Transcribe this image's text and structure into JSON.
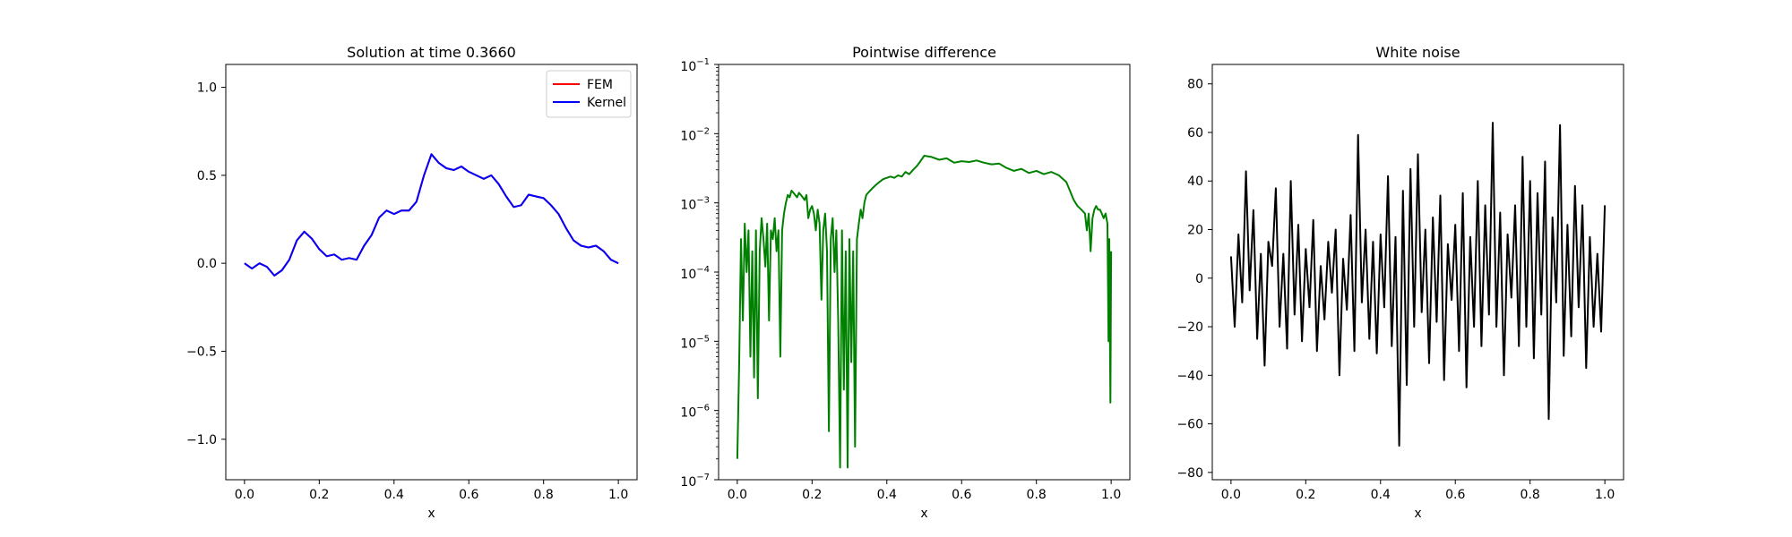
{
  "chart_data": [
    {
      "type": "line",
      "title": "Solution at time 0.3660",
      "xlabel": "x",
      "ylabel": "",
      "xlim": [
        -0.05,
        1.05
      ],
      "ylim": [
        -1.23,
        1.13
      ],
      "xticks": [
        0.0,
        0.2,
        0.4,
        0.6,
        0.8,
        1.0
      ],
      "xtick_labels": [
        "0.0",
        "0.2",
        "0.4",
        "0.6",
        "0.8",
        "1.0"
      ],
      "yticks": [
        -1.0,
        -0.5,
        0.0,
        0.5,
        1.0
      ],
      "ytick_labels": [
        "−1.0",
        "−0.5",
        "0.0",
        "0.5",
        "1.0"
      ],
      "legend": {
        "position": "top-right",
        "entries": [
          "FEM",
          "Kernel"
        ]
      },
      "series": [
        {
          "name": "FEM",
          "color": "#ff0000",
          "x": [
            0,
            0.02,
            0.04,
            0.06,
            0.08,
            0.1,
            0.12,
            0.14,
            0.16,
            0.18,
            0.2,
            0.22,
            0.24,
            0.26,
            0.28,
            0.3,
            0.32,
            0.34,
            0.36,
            0.38,
            0.4,
            0.42,
            0.44,
            0.46,
            0.48,
            0.5,
            0.52,
            0.54,
            0.56,
            0.58,
            0.6,
            0.62,
            0.64,
            0.66,
            0.68,
            0.7,
            0.72,
            0.74,
            0.76,
            0.78,
            0.8,
            0.82,
            0.84,
            0.86,
            0.88,
            0.9,
            0.92,
            0.94,
            0.96,
            0.98,
            1.0
          ],
          "y": [
            0.0,
            -0.03,
            0.0,
            -0.02,
            -0.07,
            -0.04,
            0.02,
            0.13,
            0.18,
            0.14,
            0.08,
            0.04,
            0.05,
            0.02,
            0.03,
            0.02,
            0.1,
            0.16,
            0.26,
            0.3,
            0.28,
            0.3,
            0.3,
            0.35,
            0.5,
            0.62,
            0.57,
            0.54,
            0.53,
            0.55,
            0.52,
            0.5,
            0.48,
            0.5,
            0.45,
            0.38,
            0.32,
            0.33,
            0.39,
            0.38,
            0.37,
            0.33,
            0.28,
            0.2,
            0.13,
            0.1,
            0.09,
            0.1,
            0.07,
            0.02,
            0.0
          ]
        },
        {
          "name": "Kernel",
          "color": "#0000ff",
          "x": [
            0,
            0.02,
            0.04,
            0.06,
            0.08,
            0.1,
            0.12,
            0.14,
            0.16,
            0.18,
            0.2,
            0.22,
            0.24,
            0.26,
            0.28,
            0.3,
            0.32,
            0.34,
            0.36,
            0.38,
            0.4,
            0.42,
            0.44,
            0.46,
            0.48,
            0.5,
            0.52,
            0.54,
            0.56,
            0.58,
            0.6,
            0.62,
            0.64,
            0.66,
            0.68,
            0.7,
            0.72,
            0.74,
            0.76,
            0.78,
            0.8,
            0.82,
            0.84,
            0.86,
            0.88,
            0.9,
            0.92,
            0.94,
            0.96,
            0.98,
            1.0
          ],
          "y": [
            0.0,
            -0.03,
            0.0,
            -0.02,
            -0.07,
            -0.04,
            0.02,
            0.13,
            0.18,
            0.14,
            0.08,
            0.04,
            0.05,
            0.02,
            0.03,
            0.02,
            0.1,
            0.16,
            0.26,
            0.3,
            0.28,
            0.3,
            0.3,
            0.35,
            0.5,
            0.62,
            0.57,
            0.54,
            0.53,
            0.55,
            0.52,
            0.5,
            0.48,
            0.5,
            0.45,
            0.38,
            0.32,
            0.33,
            0.39,
            0.38,
            0.37,
            0.33,
            0.28,
            0.2,
            0.13,
            0.1,
            0.09,
            0.1,
            0.07,
            0.02,
            0.0
          ]
        }
      ]
    },
    {
      "type": "line",
      "title": "Pointwise difference",
      "xlabel": "x",
      "ylabel": "",
      "yscale": "log",
      "xlim": [
        -0.05,
        1.05
      ],
      "ylim": [
        1e-07,
        0.1
      ],
      "xticks": [
        0.0,
        0.2,
        0.4,
        0.6,
        0.8,
        1.0
      ],
      "xtick_labels": [
        "0.0",
        "0.2",
        "0.4",
        "0.6",
        "0.8",
        "1.0"
      ],
      "yticks": [
        1e-07,
        1e-06,
        1e-05,
        0.0001,
        0.001,
        0.01,
        0.1
      ],
      "ytick_labels": [
        {
          "base": "10",
          "exp": "−7"
        },
        {
          "base": "10",
          "exp": "−6"
        },
        {
          "base": "10",
          "exp": "−5"
        },
        {
          "base": "10",
          "exp": "−4"
        },
        {
          "base": "10",
          "exp": "−3"
        },
        {
          "base": "10",
          "exp": "−2"
        },
        {
          "base": "10",
          "exp": "−1"
        }
      ],
      "series": [
        {
          "color": "#008000",
          "x": [
            0,
            0.005,
            0.01,
            0.015,
            0.02,
            0.025,
            0.03,
            0.035,
            0.04,
            0.045,
            0.05,
            0.055,
            0.06,
            0.065,
            0.07,
            0.075,
            0.08,
            0.085,
            0.09,
            0.095,
            0.1,
            0.105,
            0.11,
            0.115,
            0.12,
            0.125,
            0.13,
            0.135,
            0.14,
            0.145,
            0.15,
            0.155,
            0.16,
            0.165,
            0.17,
            0.175,
            0.18,
            0.185,
            0.19,
            0.195,
            0.2,
            0.205,
            0.21,
            0.215,
            0.22,
            0.225,
            0.23,
            0.235,
            0.24,
            0.245,
            0.25,
            0.255,
            0.26,
            0.265,
            0.27,
            0.275,
            0.28,
            0.285,
            0.29,
            0.295,
            0.3,
            0.305,
            0.31,
            0.315,
            0.32,
            0.325,
            0.33,
            0.335,
            0.34,
            0.345,
            0.35,
            0.36,
            0.37,
            0.38,
            0.39,
            0.4,
            0.41,
            0.42,
            0.43,
            0.44,
            0.45,
            0.46,
            0.47,
            0.48,
            0.49,
            0.5,
            0.52,
            0.54,
            0.56,
            0.58,
            0.6,
            0.62,
            0.64,
            0.66,
            0.68,
            0.7,
            0.72,
            0.74,
            0.76,
            0.78,
            0.8,
            0.82,
            0.84,
            0.86,
            0.88,
            0.9,
            0.91,
            0.92,
            0.93,
            0.935,
            0.94,
            0.945,
            0.95,
            0.955,
            0.96,
            0.965,
            0.97,
            0.975,
            0.98,
            0.985,
            0.99,
            0.993,
            0.995,
            0.998,
            1.0
          ],
          "y": [
            2e-07,
            5e-06,
            0.0003,
            2e-05,
            0.0005,
            0.0001,
            0.0004,
            6e-06,
            0.0002,
            3e-06,
            0.0004,
            1.5e-06,
            0.0002,
            0.0006,
            0.0003,
            0.00012,
            0.0005,
            2e-05,
            0.0004,
            0.0003,
            0.0006,
            0.0002,
            0.0004,
            6e-06,
            0.0004,
            0.0007,
            0.001,
            0.0013,
            0.0012,
            0.0015,
            0.0014,
            0.0013,
            0.0012,
            0.0014,
            0.0013,
            0.0012,
            0.0011,
            0.0013,
            0.0006,
            0.0008,
            0.0009,
            0.0007,
            0.0004,
            0.0008,
            0.0005,
            4e-05,
            0.0004,
            0.0007,
            0.0002,
            5e-07,
            0.0003,
            0.0006,
            0.0001,
            0.0004,
            2e-05,
            1.5e-07,
            0.0004,
            2e-06,
            0.0002,
            1.5e-07,
            0.0003,
            5e-06,
            0.0002,
            3e-07,
            0.0003,
            0.0005,
            0.0008,
            0.0006,
            0.001,
            0.0013,
            0.0014,
            0.0016,
            0.0018,
            0.002,
            0.0022,
            0.0023,
            0.0024,
            0.0023,
            0.0025,
            0.0024,
            0.0028,
            0.0026,
            0.003,
            0.0034,
            0.004,
            0.0048,
            0.0046,
            0.0042,
            0.0044,
            0.0038,
            0.004,
            0.0039,
            0.0041,
            0.0038,
            0.0036,
            0.0037,
            0.0032,
            0.0029,
            0.0031,
            0.0027,
            0.0029,
            0.0026,
            0.0028,
            0.0025,
            0.002,
            0.0011,
            0.0009,
            0.0008,
            0.0007,
            0.0004,
            0.0007,
            0.0002,
            0.0006,
            0.0008,
            0.0009,
            0.0008,
            0.0008,
            0.0007,
            0.0006,
            0.0007,
            0.0005,
            1e-05,
            0.0003,
            1.3e-06,
            0.0002
          ]
        }
      ]
    },
    {
      "type": "line",
      "title": "White noise",
      "xlabel": "x",
      "ylabel": "",
      "xlim": [
        -0.05,
        1.05
      ],
      "ylim": [
        -83,
        88
      ],
      "xticks": [
        0.0,
        0.2,
        0.4,
        0.6,
        0.8,
        1.0
      ],
      "xtick_labels": [
        "0.0",
        "0.2",
        "0.4",
        "0.6",
        "0.8",
        "1.0"
      ],
      "yticks": [
        -80,
        -60,
        -40,
        -20,
        0,
        20,
        40,
        60,
        80
      ],
      "ytick_labels": [
        "−80",
        "−60",
        "−40",
        "−20",
        "0",
        "20",
        "40",
        "60",
        "80"
      ],
      "series": [
        {
          "color": "#000000",
          "x": [
            0,
            0.01,
            0.02,
            0.03,
            0.04,
            0.05,
            0.06,
            0.07,
            0.08,
            0.09,
            0.1,
            0.11,
            0.12,
            0.13,
            0.14,
            0.15,
            0.16,
            0.17,
            0.18,
            0.19,
            0.2,
            0.21,
            0.22,
            0.23,
            0.24,
            0.25,
            0.26,
            0.27,
            0.28,
            0.29,
            0.3,
            0.31,
            0.32,
            0.33,
            0.34,
            0.35,
            0.36,
            0.37,
            0.38,
            0.39,
            0.4,
            0.41,
            0.42,
            0.43,
            0.44,
            0.45,
            0.46,
            0.47,
            0.48,
            0.49,
            0.5,
            0.51,
            0.52,
            0.53,
            0.54,
            0.55,
            0.56,
            0.57,
            0.58,
            0.59,
            0.6,
            0.61,
            0.62,
            0.63,
            0.64,
            0.65,
            0.66,
            0.67,
            0.68,
            0.69,
            0.7,
            0.71,
            0.72,
            0.73,
            0.74,
            0.75,
            0.76,
            0.77,
            0.78,
            0.79,
            0.8,
            0.81,
            0.82,
            0.83,
            0.84,
            0.85,
            0.86,
            0.87,
            0.88,
            0.89,
            0.9,
            0.91,
            0.92,
            0.93,
            0.94,
            0.95,
            0.96,
            0.97,
            0.98,
            0.99,
            1.0
          ],
          "y": [
            9,
            -20,
            18,
            -10,
            44,
            -5,
            28,
            -25,
            10,
            -36,
            15,
            5,
            37,
            -20,
            10,
            -29,
            40,
            -15,
            22,
            -26,
            12,
            -12,
            24,
            -30,
            5,
            -17,
            15,
            -6,
            20,
            -40,
            8,
            -13,
            26,
            -30,
            59,
            -10,
            20,
            -25,
            15,
            -31,
            18,
            -12,
            42,
            -28,
            17,
            -69,
            36,
            -44,
            45,
            -20,
            51,
            -14,
            20,
            -35,
            25,
            -18,
            34,
            -42,
            14,
            -9,
            22,
            -30,
            35,
            -45,
            17,
            -20,
            40,
            -28,
            30,
            -15,
            64,
            -20,
            27,
            -40,
            18,
            -8,
            30,
            -28,
            50,
            -20,
            40,
            -33,
            35,
            -15,
            48,
            -58,
            25,
            -10,
            63,
            -32,
            22,
            -24,
            38,
            -12,
            30,
            -37,
            17,
            -20,
            10,
            -22,
            30
          ]
        }
      ]
    }
  ]
}
